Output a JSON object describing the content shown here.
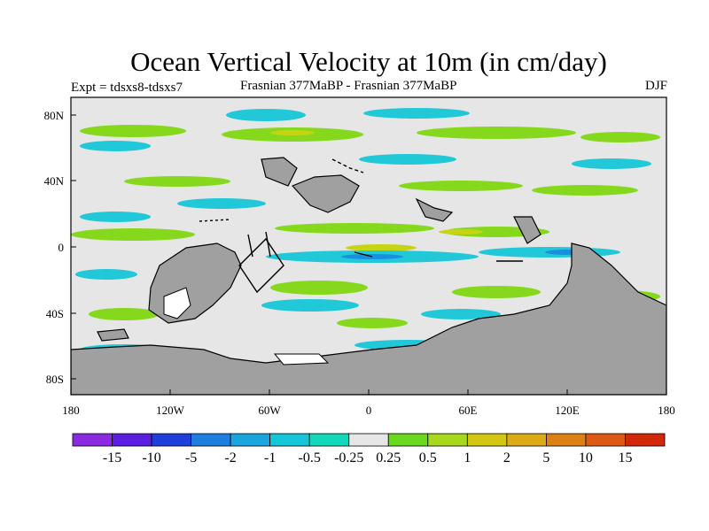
{
  "title": "Ocean Vertical Velocity at 10m (in cm/day)",
  "subtitle_left": "Expt = tdsxs8-tdsxs7",
  "subtitle_center": "Frasnian 377MaBP - Frasnian 377MaBP",
  "subtitle_right": "DJF",
  "lat_ticks": [
    "80N",
    "40N",
    "0",
    "40S",
    "80S"
  ],
  "lon_ticks": [
    "180",
    "120W",
    "60W",
    "0",
    "60E",
    "120E",
    "180"
  ],
  "colorbar": {
    "colors": [
      "#8a2be2",
      "#5a1fe0",
      "#1e3fdc",
      "#1f7fe0",
      "#1aa6dc",
      "#14c6d8",
      "#14d8bc",
      "#e6e6e6",
      "#6ad81c",
      "#a8d81c",
      "#d2c814",
      "#dcaa14",
      "#dc8214",
      "#dc5a14",
      "#d2280a"
    ],
    "labels": [
      "-15",
      "-10",
      "-5",
      "-2",
      "-1",
      "-0.5",
      "-0.25",
      "0.25",
      "0.5",
      "1",
      "2",
      "5",
      "10",
      "15"
    ]
  }
}
